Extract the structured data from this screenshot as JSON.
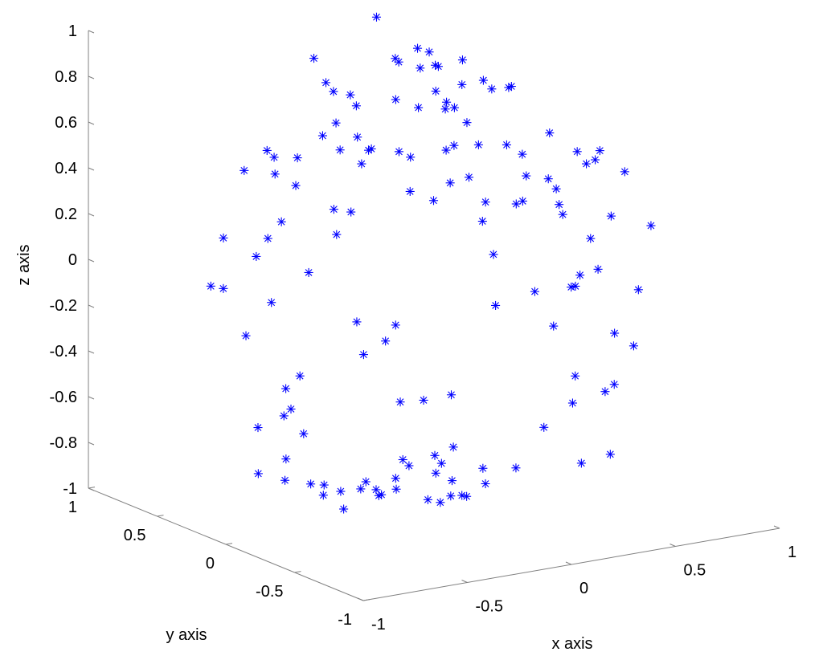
{
  "chart_data": {
    "type": "scatter",
    "projection": "3d",
    "marker": "asterisk",
    "marker_color": "#0000ff",
    "axis_color": "#808080",
    "grid": false,
    "legend": "none",
    "title": "",
    "xlabel": "x axis",
    "ylabel": "y axis",
    "zlabel": "z axis",
    "xlim": [
      -1,
      1
    ],
    "ylim": [
      -1,
      1
    ],
    "zlim": [
      -1,
      1
    ],
    "x_ticks": [
      "-1",
      "-0.5",
      "0",
      "0.5",
      "1"
    ],
    "y_ticks": [
      "-1",
      "-0.5",
      "0",
      "0.5",
      "1"
    ],
    "z_ticks": [
      "-1",
      "-0.8",
      "-0.6",
      "-0.4",
      "-0.2",
      "0",
      "0.2",
      "0.4",
      "0.6",
      "0.8",
      "1"
    ],
    "points": [
      [
        -0.06,
        -0.45,
        0.99
      ],
      [
        -0.13,
        -0.4,
        0.97
      ],
      [
        0.12,
        0.6,
        0.98
      ],
      [
        0.01,
        0.05,
        0.98
      ],
      [
        -0.06,
        -0.1,
        0.97
      ],
      [
        -0.45,
        0.05,
        0.88
      ],
      [
        -0.28,
        0.45,
        0.9
      ],
      [
        0.17,
        0.05,
        0.92
      ],
      [
        0.45,
        0.65,
        0.7
      ],
      [
        0.57,
        0.3,
        0.68
      ],
      [
        0.16,
        -0.4,
        0.62
      ],
      [
        -0.43,
        -0.48,
        0.72
      ],
      [
        -0.59,
        0.1,
        0.6
      ],
      [
        -0.1,
        -0.3,
        0.84
      ],
      [
        -0.57,
        0.3,
        0.55
      ],
      [
        -0.55,
        -0.12,
        0.8
      ],
      [
        -0.78,
        0.2,
        0.55
      ],
      [
        -0.3,
        -0.6,
        0.78
      ],
      [
        -0.24,
        -0.25,
        0.85
      ],
      [
        -0.5,
        -0.2,
        0.75
      ],
      [
        -0.04,
        0.04,
        0.92
      ],
      [
        0.24,
        0.62,
        0.76
      ],
      [
        -0.12,
        0.1,
        0.96
      ],
      [
        0.02,
        0.15,
        0.97
      ],
      [
        -0.92,
        -0.1,
        0.27
      ],
      [
        -0.84,
        0.26,
        0.25
      ],
      [
        -0.73,
        -0.1,
        0.55
      ],
      [
        -0.6,
        -0.2,
        0.34
      ],
      [
        -0.42,
        -0.16,
        0.67
      ],
      [
        -0.7,
        0.05,
        0.35
      ],
      [
        -0.8,
        -0.3,
        0.23
      ],
      [
        -0.94,
        0.2,
        0.07
      ],
      [
        -0.88,
        0.2,
        0.05
      ],
      [
        -0.6,
        0.3,
        0.2
      ],
      [
        -0.34,
        0.05,
        0.8
      ],
      [
        -0.25,
        -0.1,
        0.85
      ],
      [
        -0.57,
        -0.18,
        0.7
      ],
      [
        -0.27,
        0.2,
        0.8
      ],
      [
        -0.2,
        -0.3,
        0.45
      ],
      [
        -0.25,
        0.35,
        0.26
      ],
      [
        -0.55,
        0.35,
        -0.1
      ],
      [
        -0.28,
        -0.25,
        0.49
      ],
      [
        -0.63,
        -0.35,
        0.48
      ],
      [
        -0.44,
        0.12,
        0.9
      ],
      [
        -0.48,
        -0.2,
        0.63
      ],
      [
        -0.38,
        -0.12,
        0.66
      ],
      [
        -0.12,
        -0.27,
        0.65
      ],
      [
        0.03,
        0.3,
        0.48
      ],
      [
        -0.46,
        0.46,
        0.42
      ],
      [
        -0.67,
        0.2,
        0.62
      ],
      [
        -0.7,
        -0.25,
        0.8
      ],
      [
        -0.27,
        -0.5,
        0.94
      ],
      [
        -0.91,
        -0.01,
        -0.1
      ],
      [
        -0.91,
        -0.3,
        -0.26
      ],
      [
        -0.82,
        -0.15,
        -0.43
      ],
      [
        -0.74,
        -0.08,
        -0.43
      ],
      [
        -0.93,
        -0.13,
        -0.67
      ],
      [
        -0.58,
        0.07,
        -0.6
      ],
      [
        -0.74,
        0.16,
        -0.57
      ],
      [
        -0.81,
        -0.15,
        -0.62
      ],
      [
        -0.12,
        0.38,
        -0.26
      ],
      [
        -0.14,
        0.3,
        -0.38
      ],
      [
        -0.38,
        0.4,
        -0.46
      ],
      [
        -0.05,
        0.0,
        -0.52
      ],
      [
        -0.03,
        0.2,
        -0.58
      ],
      [
        -0.2,
        0.05,
        -0.25
      ],
      [
        0.06,
        0.37,
        -0.3
      ],
      [
        0.05,
        -0.05,
        -0.5
      ],
      [
        0.06,
        -0.05,
        -0.73
      ],
      [
        -0.65,
        0.1,
        -0.8
      ],
      [
        -0.48,
        0.17,
        -0.86
      ],
      [
        -0.5,
        -0.1,
        -0.9
      ],
      [
        -0.33,
        0.3,
        -0.92
      ],
      [
        -0.36,
        0.26,
        -0.95
      ],
      [
        -0.22,
        0.2,
        -0.93
      ],
      [
        -0.27,
        0.27,
        -0.95
      ],
      [
        -0.16,
        0.14,
        -0.95
      ],
      [
        -0.12,
        0.22,
        -0.98
      ],
      [
        -0.08,
        0.3,
        -0.98
      ],
      [
        -0.03,
        0.45,
        -0.99
      ],
      [
        0.05,
        0.12,
        -1.0
      ],
      [
        0.05,
        0.03,
        -0.99
      ],
      [
        0.03,
        0.32,
        -1.0
      ],
      [
        0.17,
        0.02,
        -0.98
      ],
      [
        0.1,
        0.02,
        -0.9
      ],
      [
        0.08,
        0.4,
        -0.98
      ],
      [
        0.12,
        0.06,
        -0.98
      ],
      [
        0.2,
        0.1,
        -1.0
      ],
      [
        0.22,
        0.32,
        -0.96
      ],
      [
        0.21,
        0.5,
        -0.97
      ],
      [
        0.22,
        0.56,
        -0.96
      ],
      [
        0.32,
        0.43,
        -0.96
      ],
      [
        0.4,
        0.25,
        -0.95
      ],
      [
        0.4,
        0.6,
        -0.98
      ],
      [
        0.3,
        0.08,
        -0.96
      ],
      [
        0.42,
        0.04,
        -0.9
      ],
      [
        0.51,
        -0.3,
        -0.81
      ],
      [
        0.53,
        -0.48,
        -0.73
      ],
      [
        0.58,
        -0.13,
        -0.6
      ],
      [
        0.69,
        -0.2,
        -0.55
      ],
      [
        0.78,
        -0.13,
        -0.55
      ],
      [
        0.66,
        0.2,
        -0.8
      ],
      [
        0.85,
        0.26,
        -0.62
      ],
      [
        0.88,
        -0.12,
        -0.4
      ],
      [
        0.92,
        0.08,
        -0.4
      ],
      [
        0.89,
        0.35,
        -0.26
      ],
      [
        0.54,
        0.37,
        -0.29
      ],
      [
        0.66,
        0.13,
        -0.34
      ],
      [
        0.85,
        -0.2,
        -0.13
      ],
      [
        0.92,
        0.2,
        -0.15
      ],
      [
        0.93,
        -0.17,
        0.13
      ],
      [
        0.95,
        0.15,
        0.09
      ],
      [
        0.7,
        0.15,
        0.18
      ],
      [
        0.8,
        0.38,
        0.22
      ],
      [
        0.81,
        0.02,
        0.43
      ],
      [
        0.89,
        -0.04,
        0.34
      ],
      [
        0.82,
        0.2,
        0.38
      ],
      [
        0.56,
        0.25,
        0.18
      ],
      [
        0.53,
        0.45,
        0.06
      ],
      [
        0.62,
        -0.2,
        0.13
      ],
      [
        0.46,
        -0.24,
        0.27
      ],
      [
        0.53,
        -0.37,
        0.53
      ],
      [
        0.39,
        -0.25,
        0.64
      ],
      [
        0.35,
        0.11,
        0.75
      ],
      [
        0.58,
        -0.23,
        0.47
      ],
      [
        0.6,
        0.38,
        0.4
      ],
      [
        0.19,
        0.17,
        0.35
      ],
      [
        0.26,
        0.07,
        0.53
      ],
      [
        0.31,
        -0.42,
        0.45
      ],
      [
        0.36,
        -0.1,
        0.31
      ],
      [
        0.34,
        0.14,
        0.25
      ],
      [
        0.41,
        -0.05,
        0.4
      ],
      [
        0.27,
        -0.62,
        0.08
      ],
      [
        0.24,
        -0.37,
        0.0
      ],
      [
        0.18,
        -0.16,
        0.12
      ],
      [
        0.49,
        -0.32,
        0.02
      ],
      [
        0.31,
        0.23,
        0.58
      ],
      [
        0.57,
        0.32,
        0.67
      ],
      [
        0.3,
        0.2,
        0.35
      ],
      [
        0.16,
        0.16,
        0.68
      ],
      [
        0.2,
        0.29,
        0.72
      ]
    ]
  }
}
